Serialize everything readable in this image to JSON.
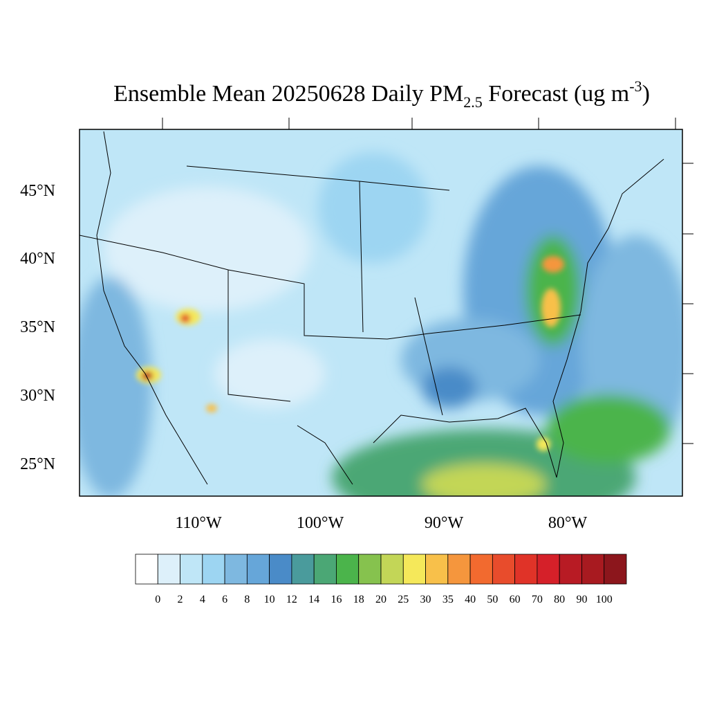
{
  "title": {
    "main": "Ensemble Mean 20250628 Daily PM",
    "subscript": "2.5",
    "middle": " Forecast (ug m",
    "superscript": "-3",
    "end": ")"
  },
  "lat_labels": [
    "45°N",
    "40°N",
    "35°N",
    "30°N",
    "25°N"
  ],
  "lon_labels": [
    "110°W",
    "100°W",
    "90°W",
    "80°W"
  ],
  "colorbar": {
    "labels": [
      0,
      2,
      4,
      6,
      8,
      10,
      12,
      14,
      16,
      18,
      20,
      25,
      30,
      35,
      40,
      50,
      60,
      70,
      80,
      90,
      100
    ],
    "colors": [
      "#ffffff",
      "#ddf0fa",
      "#bfe6f7",
      "#9dd5f2",
      "#7eb8e0",
      "#66a6d9",
      "#4a8bc8",
      "#4a9b9c",
      "#4ba775",
      "#4bb44b",
      "#86c24e",
      "#c3d657",
      "#f5e85a",
      "#f8c04a",
      "#f5963d",
      "#f26a2f",
      "#e84c2c",
      "#e03328",
      "#d52029",
      "#b81b24",
      "#a81a20",
      "#8c161c"
    ]
  }
}
